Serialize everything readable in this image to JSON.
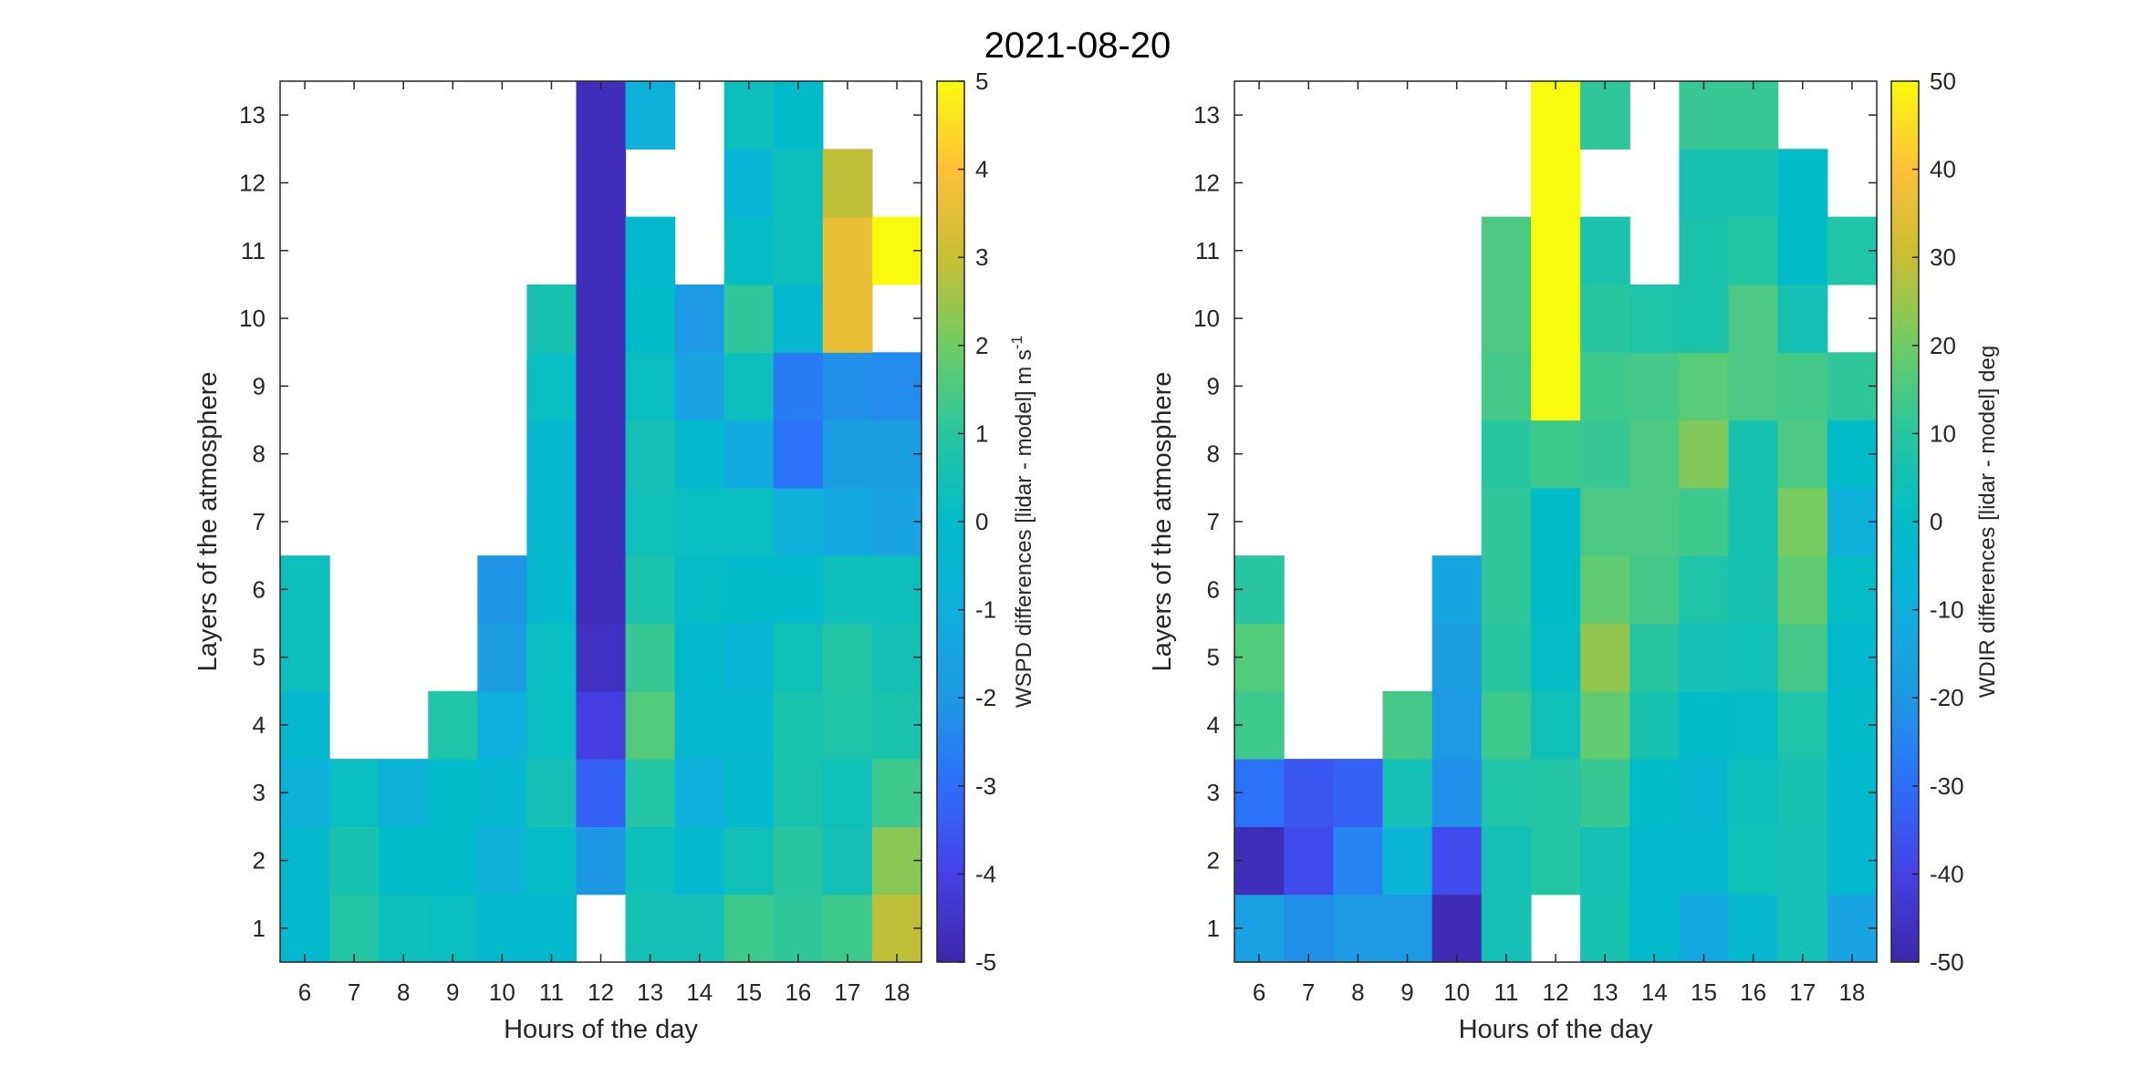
{
  "figure": {
    "title": "2021-08-20"
  },
  "chart_data": [
    {
      "type": "heatmap",
      "title": "",
      "xlabel": "Hours of the day",
      "ylabel": "Layers of the atmosphere",
      "colorbar_label": "WSPD differences [lidar - model] m s",
      "colorbar_label_superscript": "-1",
      "clim": [
        -5,
        5
      ],
      "colorbar_ticks": [
        5,
        4,
        3,
        2,
        1,
        0,
        -1,
        -2,
        -3,
        -4,
        -5
      ],
      "x": [
        6,
        7,
        8,
        9,
        10,
        11,
        12,
        13,
        14,
        15,
        16,
        17,
        18
      ],
      "y": [
        1,
        2,
        3,
        4,
        5,
        6,
        7,
        8,
        9,
        10,
        11,
        12,
        13
      ],
      "grid": false,
      "values": [
        [
          -0.3,
          0.9,
          0.3,
          0.2,
          -0.2,
          -0.2,
          null,
          0.5,
          0.5,
          1.3,
          1.1,
          1.3,
          2.9
        ],
        [
          -0.3,
          0.6,
          0.0,
          -0.1,
          -0.8,
          0.1,
          -2.0,
          0.3,
          -0.3,
          0.4,
          1.0,
          0.5,
          2.3
        ],
        [
          -0.8,
          0.2,
          -0.8,
          0.0,
          -0.4,
          0.5,
          -3.3,
          0.9,
          -1.0,
          -0.3,
          0.7,
          0.4,
          1.3
        ],
        [
          -0.3,
          null,
          null,
          0.8,
          -1.0,
          0.2,
          -4.1,
          1.6,
          -0.4,
          -0.4,
          0.7,
          0.8,
          0.7
        ],
        [
          0.3,
          null,
          null,
          null,
          -1.8,
          0.2,
          -4.6,
          1.2,
          -0.2,
          -0.6,
          0.4,
          0.9,
          0.5
        ],
        [
          0.3,
          null,
          null,
          null,
          -2.1,
          -0.3,
          -4.7,
          0.7,
          0.1,
          -0.1,
          -0.1,
          0.3,
          0.3
        ],
        [
          null,
          null,
          null,
          null,
          null,
          -0.4,
          -4.7,
          0.4,
          0.2,
          0.2,
          -0.9,
          -1.3,
          -1.5
        ],
        [
          null,
          null,
          null,
          null,
          null,
          -0.4,
          -4.7,
          0.5,
          -0.3,
          -1.2,
          -2.9,
          -1.8,
          -1.8
        ],
        [
          null,
          null,
          null,
          null,
          null,
          0.2,
          -4.7,
          0.2,
          -1.5,
          0.3,
          -2.7,
          -2.2,
          -2.3
        ],
        [
          null,
          null,
          null,
          null,
          null,
          0.6,
          -4.7,
          0.0,
          -1.9,
          1.1,
          -0.4,
          3.6,
          null
        ],
        [
          null,
          null,
          null,
          null,
          null,
          null,
          -4.7,
          -0.3,
          null,
          0.1,
          0.3,
          3.6,
          5.0
        ],
        [
          null,
          null,
          null,
          null,
          null,
          null,
          -4.7,
          null,
          null,
          -0.6,
          0.3,
          2.9,
          null
        ],
        [
          null,
          null,
          null,
          null,
          null,
          null,
          -4.7,
          -0.9,
          null,
          0.3,
          -0.1,
          null,
          null
        ]
      ]
    },
    {
      "type": "heatmap",
      "title": "",
      "xlabel": "Hours of the day",
      "ylabel": "Layers of the atmosphere",
      "colorbar_label": "WDIR differences [lidar - model] deg",
      "clim": [
        -50,
        50
      ],
      "colorbar_ticks": [
        50,
        40,
        30,
        20,
        10,
        0,
        -10,
        -20,
        -30,
        -40,
        -50
      ],
      "x": [
        6,
        7,
        8,
        9,
        10,
        11,
        12,
        13,
        14,
        15,
        16,
        17,
        18
      ],
      "y": [
        1,
        2,
        3,
        4,
        5,
        6,
        7,
        8,
        9,
        10,
        11,
        12,
        13
      ],
      "grid": false,
      "values": [
        [
          -16,
          -22,
          -19,
          -19,
          -48,
          5,
          null,
          6,
          -2,
          -13,
          -4,
          5,
          -15
        ],
        [
          -47,
          -38,
          -25,
          -7,
          -38,
          5,
          9,
          5,
          -2,
          -4,
          4,
          5,
          -2
        ],
        [
          -29,
          -35,
          -33,
          5,
          -22,
          8,
          9,
          12,
          0,
          -5,
          3,
          6,
          -2
        ],
        [
          13,
          null,
          null,
          14,
          -19,
          13,
          4,
          18,
          6,
          0,
          1,
          8,
          -1
        ],
        [
          16,
          null,
          null,
          null,
          -18,
          10,
          1,
          24,
          10,
          5,
          4,
          14,
          -2
        ],
        [
          10,
          null,
          null,
          null,
          -14,
          11,
          0,
          18,
          14,
          8,
          6,
          18,
          1
        ],
        [
          null,
          null,
          null,
          null,
          null,
          11,
          0,
          15,
          15,
          13,
          6,
          21,
          -9
        ],
        [
          null,
          null,
          null,
          null,
          null,
          10,
          13,
          12,
          15,
          22,
          6,
          15,
          0
        ],
        [
          null,
          null,
          null,
          null,
          null,
          14,
          50,
          13,
          14,
          17,
          15,
          14,
          11
        ],
        [
          null,
          null,
          null,
          null,
          null,
          15,
          50,
          10,
          8,
          7,
          15,
          5,
          null
        ],
        [
          null,
          null,
          null,
          null,
          null,
          15,
          50,
          7,
          null,
          7,
          9,
          0,
          8
        ],
        [
          null,
          null,
          null,
          null,
          null,
          null,
          50,
          null,
          null,
          6,
          6,
          0,
          null
        ],
        [
          null,
          null,
          null,
          null,
          null,
          null,
          50,
          11,
          null,
          12,
          12,
          null,
          null
        ]
      ]
    }
  ]
}
